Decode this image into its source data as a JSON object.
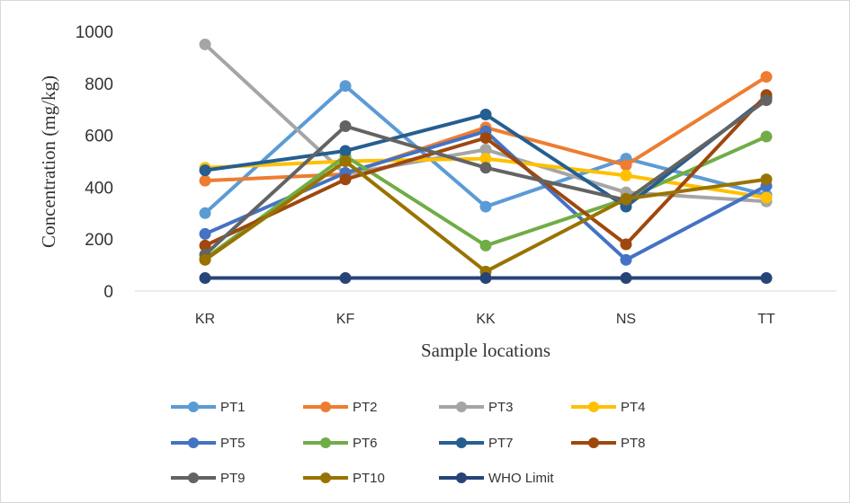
{
  "chart_data": {
    "type": "line",
    "title": "",
    "xlabel": "Sample locations",
    "ylabel": "Concentration (mg/kg)",
    "categories": [
      "KR",
      "KF",
      "KK",
      "NS",
      "TT"
    ],
    "ylim": [
      0,
      1000
    ],
    "yticks": [
      0,
      200,
      400,
      600,
      800,
      1000
    ],
    "grid": false,
    "legend_position": "bottom",
    "series": [
      {
        "name": "PT1",
        "color": "#5B9BD5",
        "values": [
          300,
          790,
          325,
          510,
          370
        ]
      },
      {
        "name": "PT2",
        "color": "#ED7D31",
        "values": [
          425,
          450,
          630,
          485,
          825
        ]
      },
      {
        "name": "PT3",
        "color": "#A5A5A5",
        "values": [
          950,
          450,
          545,
          380,
          345
        ]
      },
      {
        "name": "PT4",
        "color": "#FFC000",
        "values": [
          475,
          500,
          510,
          445,
          360
        ]
      },
      {
        "name": "PT5",
        "color": "#4472C4",
        "values": [
          220,
          455,
          615,
          120,
          405
        ]
      },
      {
        "name": "PT6",
        "color": "#70AD47",
        "values": [
          125,
          520,
          175,
          355,
          595
        ]
      },
      {
        "name": "PT7",
        "color": "#255E91",
        "values": [
          465,
          540,
          680,
          325,
          745
        ]
      },
      {
        "name": "PT8",
        "color": "#9E480E",
        "values": [
          175,
          430,
          590,
          180,
          755
        ]
      },
      {
        "name": "PT9",
        "color": "#636363",
        "values": [
          140,
          635,
          475,
          350,
          735
        ]
      },
      {
        "name": "PT10",
        "color": "#997300",
        "values": [
          120,
          500,
          75,
          355,
          430
        ]
      },
      {
        "name": "WHO Limit",
        "color": "#264478",
        "values": [
          50,
          50,
          50,
          50,
          50
        ]
      }
    ]
  }
}
